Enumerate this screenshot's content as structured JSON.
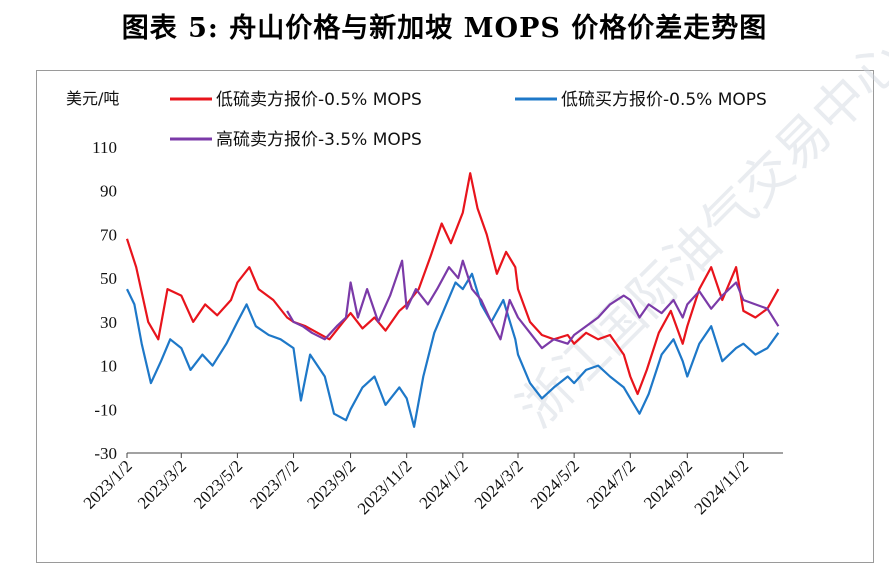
{
  "title": "图表 5:  舟山价格与新加坡 MOPS 价格价差走势图",
  "watermark": "浙江国际油气交易中心",
  "chart_data": {
    "type": "line",
    "title": "图表 5:  舟山价格与新加坡 MOPS 价格价差走势图",
    "ylabel": "美元/吨",
    "xlabel": "",
    "ylim": [
      -30,
      110
    ],
    "yticks": [
      110,
      90,
      70,
      50,
      30,
      10,
      -10,
      -30
    ],
    "grid": false,
    "legend_position": "top",
    "x_tick_labels": [
      "2023/1/2",
      "2023/3/2",
      "2023/5/2",
      "2023/7/2",
      "2023/9/2",
      "2023/11/2",
      "2024/1/2",
      "2024/3/2",
      "2024/5/2",
      "2024/7/2",
      "2024/9/2",
      "2024/11/2"
    ],
    "series": [
      {
        "name": "低硫卖方报价-0.5% MOPS",
        "color": "#e8141c",
        "points": [
          [
            "2023/1/2",
            68
          ],
          [
            "2023/1/12",
            55
          ],
          [
            "2023/1/25",
            30
          ],
          [
            "2023/2/5",
            22
          ],
          [
            "2023/2/15",
            45
          ],
          [
            "2023/3/2",
            42
          ],
          [
            "2023/3/15",
            30
          ],
          [
            "2023/3/28",
            38
          ],
          [
            "2023/4/10",
            33
          ],
          [
            "2023/4/25",
            40
          ],
          [
            "2023/5/2",
            48
          ],
          [
            "2023/5/15",
            55
          ],
          [
            "2023/5/25",
            45
          ],
          [
            "2023/6/10",
            40
          ],
          [
            "2023/6/25",
            32
          ],
          [
            "2023/7/2",
            30
          ],
          [
            "2023/7/15",
            28
          ],
          [
            "2023/7/28",
            25
          ],
          [
            "2023/8/10",
            22
          ],
          [
            "2023/8/25",
            30
          ],
          [
            "2023/9/2",
            34
          ],
          [
            "2023/9/15",
            27
          ],
          [
            "2023/9/28",
            32
          ],
          [
            "2023/10/10",
            26
          ],
          [
            "2023/10/25",
            35
          ],
          [
            "2023/11/2",
            38
          ],
          [
            "2023/11/15",
            45
          ],
          [
            "2023/11/28",
            60
          ],
          [
            "2023/12/10",
            75
          ],
          [
            "2023/12/20",
            66
          ],
          [
            "2024/1/2",
            80
          ],
          [
            "2024/1/10",
            98
          ],
          [
            "2024/1/18",
            82
          ],
          [
            "2024/1/28",
            70
          ],
          [
            "2024/2/8",
            52
          ],
          [
            "2024/2/18",
            62
          ],
          [
            "2024/2/28",
            55
          ],
          [
            "2024/3/2",
            45
          ],
          [
            "2024/3/15",
            30
          ],
          [
            "2024/3/28",
            24
          ],
          [
            "2024/4/10",
            22
          ],
          [
            "2024/4/25",
            24
          ],
          [
            "2024/5/2",
            20
          ],
          [
            "2024/5/15",
            25
          ],
          [
            "2024/5/28",
            22
          ],
          [
            "2024/6/10",
            24
          ],
          [
            "2024/6/25",
            15
          ],
          [
            "2024/7/2",
            5
          ],
          [
            "2024/7/10",
            -3
          ],
          [
            "2024/7/20",
            8
          ],
          [
            "2024/8/2",
            25
          ],
          [
            "2024/8/15",
            35
          ],
          [
            "2024/8/28",
            20
          ],
          [
            "2024/9/2",
            28
          ],
          [
            "2024/9/15",
            45
          ],
          [
            "2024/9/28",
            55
          ],
          [
            "2024/10/10",
            40
          ],
          [
            "2024/10/25",
            55
          ],
          [
            "2024/11/2",
            35
          ],
          [
            "2024/11/15",
            32
          ],
          [
            "2024/11/28",
            36
          ],
          [
            "2024/12/10",
            45
          ]
        ]
      },
      {
        "name": "低硫买方报价-0.5% MOPS",
        "color": "#1e78c8",
        "points": [
          [
            "2023/1/2",
            45
          ],
          [
            "2023/1/10",
            38
          ],
          [
            "2023/1/18",
            20
          ],
          [
            "2023/1/28",
            2
          ],
          [
            "2023/2/8",
            12
          ],
          [
            "2023/2/18",
            22
          ],
          [
            "2023/3/2",
            18
          ],
          [
            "2023/3/12",
            8
          ],
          [
            "2023/3/25",
            15
          ],
          [
            "2023/4/5",
            10
          ],
          [
            "2023/4/20",
            20
          ],
          [
            "2023/5/2",
            30
          ],
          [
            "2023/5/12",
            38
          ],
          [
            "2023/5/22",
            28
          ],
          [
            "2023/6/5",
            24
          ],
          [
            "2023/6/18",
            22
          ],
          [
            "2023/7/2",
            18
          ],
          [
            "2023/7/10",
            -6
          ],
          [
            "2023/7/20",
            15
          ],
          [
            "2023/8/5",
            5
          ],
          [
            "2023/8/15",
            -12
          ],
          [
            "2023/8/28",
            -15
          ],
          [
            "2023/9/2",
            -10
          ],
          [
            "2023/9/15",
            0
          ],
          [
            "2023/9/28",
            5
          ],
          [
            "2023/10/10",
            -8
          ],
          [
            "2023/10/25",
            0
          ],
          [
            "2023/11/2",
            -5
          ],
          [
            "2023/11/10",
            -18
          ],
          [
            "2023/11/20",
            5
          ],
          [
            "2023/12/2",
            25
          ],
          [
            "2023/12/12",
            35
          ],
          [
            "2023/12/25",
            48
          ],
          [
            "2024/1/2",
            45
          ],
          [
            "2024/1/12",
            52
          ],
          [
            "2024/1/22",
            38
          ],
          [
            "2024/2/2",
            30
          ],
          [
            "2024/2/15",
            40
          ],
          [
            "2024/2/28",
            22
          ],
          [
            "2024/3/2",
            15
          ],
          [
            "2024/3/15",
            2
          ],
          [
            "2024/3/28",
            -5
          ],
          [
            "2024/4/10",
            0
          ],
          [
            "2024/4/25",
            5
          ],
          [
            "2024/5/2",
            2
          ],
          [
            "2024/5/15",
            8
          ],
          [
            "2024/5/28",
            10
          ],
          [
            "2024/6/10",
            5
          ],
          [
            "2024/6/25",
            0
          ],
          [
            "2024/7/2",
            -5
          ],
          [
            "2024/7/12",
            -12
          ],
          [
            "2024/7/22",
            -3
          ],
          [
            "2024/8/5",
            15
          ],
          [
            "2024/8/18",
            22
          ],
          [
            "2024/8/28",
            12
          ],
          [
            "2024/9/2",
            5
          ],
          [
            "2024/9/15",
            20
          ],
          [
            "2024/9/28",
            28
          ],
          [
            "2024/10/10",
            12
          ],
          [
            "2024/10/25",
            18
          ],
          [
            "2024/11/2",
            20
          ],
          [
            "2024/11/15",
            15
          ],
          [
            "2024/11/28",
            18
          ],
          [
            "2024/12/10",
            25
          ]
        ]
      },
      {
        "name": "高硫卖方报价-3.5% MOPS",
        "color": "#7b3aa8",
        "points": [
          [
            "2023/6/25",
            35
          ],
          [
            "2023/7/2",
            30
          ],
          [
            "2023/7/12",
            28
          ],
          [
            "2023/7/22",
            25
          ],
          [
            "2023/8/5",
            22
          ],
          [
            "2023/8/18",
            28
          ],
          [
            "2023/8/28",
            32
          ],
          [
            "2023/9/2",
            48
          ],
          [
            "2023/9/10",
            32
          ],
          [
            "2023/9/20",
            45
          ],
          [
            "2023/10/2",
            30
          ],
          [
            "2023/10/15",
            42
          ],
          [
            "2023/10/28",
            58
          ],
          [
            "2023/11/2",
            36
          ],
          [
            "2023/11/12",
            45
          ],
          [
            "2023/11/25",
            38
          ],
          [
            "2023/12/5",
            45
          ],
          [
            "2023/12/18",
            55
          ],
          [
            "2023/12/28",
            50
          ],
          [
            "2024/1/2",
            58
          ],
          [
            "2024/1/12",
            45
          ],
          [
            "2024/1/22",
            40
          ],
          [
            "2024/2/2",
            30
          ],
          [
            "2024/2/12",
            22
          ],
          [
            "2024/2/22",
            40
          ],
          [
            "2024/3/2",
            32
          ],
          [
            "2024/3/15",
            25
          ],
          [
            "2024/3/28",
            18
          ],
          [
            "2024/4/10",
            22
          ],
          [
            "2024/4/25",
            20
          ],
          [
            "2024/5/2",
            24
          ],
          [
            "2024/5/15",
            28
          ],
          [
            "2024/5/28",
            32
          ],
          [
            "2024/6/10",
            38
          ],
          [
            "2024/6/25",
            42
          ],
          [
            "2024/7/2",
            40
          ],
          [
            "2024/7/12",
            32
          ],
          [
            "2024/7/22",
            38
          ],
          [
            "2024/8/5",
            34
          ],
          [
            "2024/8/18",
            40
          ],
          [
            "2024/8/28",
            32
          ],
          [
            "2024/9/2",
            38
          ],
          [
            "2024/9/15",
            44
          ],
          [
            "2024/9/28",
            36
          ],
          [
            "2024/10/10",
            42
          ],
          [
            "2024/10/25",
            48
          ],
          [
            "2024/11/2",
            40
          ],
          [
            "2024/11/15",
            38
          ],
          [
            "2024/11/28",
            36
          ],
          [
            "2024/12/10",
            28
          ]
        ]
      }
    ]
  }
}
